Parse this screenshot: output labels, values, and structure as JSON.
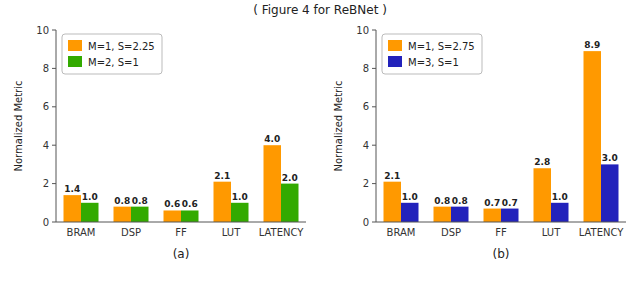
{
  "title": "( Figure 4 for ReBNet )",
  "chart_data": [
    {
      "type": "bar",
      "categories": [
        "BRAM",
        "DSP",
        "FF",
        "LUT",
        "LATENCY"
      ],
      "series": [
        {
          "name": "M=1, S=2.25",
          "color": "#FF9900",
          "values": [
            1.4,
            0.8,
            0.6,
            2.1,
            4.0
          ],
          "value_labels": [
            "1.4",
            "0.8",
            "0.6",
            "2.1",
            "4.0"
          ]
        },
        {
          "name": "M=2, S=1",
          "color": "#33AA00",
          "values": [
            1.0,
            0.8,
            0.6,
            1.0,
            2.0
          ],
          "value_labels": [
            "1.0",
            "0.8",
            "0.6",
            "1.0",
            "2.0"
          ]
        }
      ],
      "ylabel": "Normalized Metric",
      "xlabel": "(a)",
      "ylim": [
        0,
        10
      ],
      "yticks": [
        0,
        2,
        4,
        6,
        8,
        10
      ],
      "data_labels": true,
      "legend": "upper left",
      "grid": false
    },
    {
      "type": "bar",
      "categories": [
        "BRAM",
        "DSP",
        "FF",
        "LUT",
        "LATENCY"
      ],
      "series": [
        {
          "name": "M=1, S=2.75",
          "color": "#FF9900",
          "values": [
            2.1,
            0.8,
            0.7,
            2.8,
            8.9
          ],
          "value_labels": [
            "2.1",
            "0.8",
            "0.7",
            "2.8",
            "8.9"
          ]
        },
        {
          "name": "M=3, S=1",
          "color": "#2222BB",
          "values": [
            1.0,
            0.8,
            0.7,
            1.0,
            3.0
          ],
          "value_labels": [
            "1.0",
            "0.8",
            "0.7",
            "1.0",
            "3.0"
          ]
        }
      ],
      "ylabel": "Normalized Metric",
      "xlabel": "(b)",
      "ylim": [
        0,
        10
      ],
      "yticks": [
        0,
        2,
        4,
        6,
        8,
        10
      ],
      "data_labels": true,
      "legend": "upper left",
      "grid": false
    }
  ]
}
